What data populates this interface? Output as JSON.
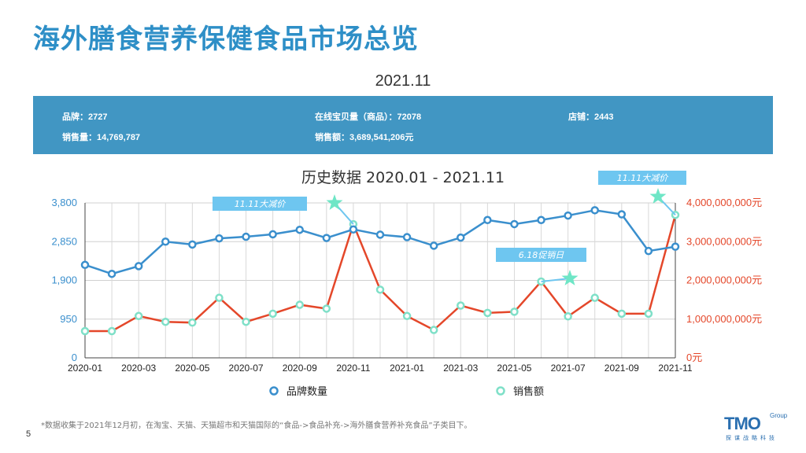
{
  "header": {
    "title": "海外膳食营养保健食品市场总览",
    "period": "2021.11"
  },
  "stats": {
    "brand_label": "品牌：",
    "brand_value": "2727",
    "sales_vol_label": "销售量：",
    "sales_vol_value": "14,769,787",
    "items_label": "在线宝贝量（商品）：",
    "items_value": "72078",
    "revenue_label": "销售额：",
    "revenue_value": "3,689,541,206元",
    "shops_label": "店铺：",
    "shops_value": "2443"
  },
  "colors": {
    "brand_series": "#3a8fcd",
    "sales_series": "#e4472a",
    "marker_fill": "#ffffff",
    "sales_marker": "#7fe0c8",
    "annotation_bg": "#6ec6f0",
    "star": "#6ee6c6",
    "stats_bg": "#4196c3",
    "title": "#2e8fc7"
  },
  "chart_data": {
    "type": "line",
    "title": "历史数据 2020.01 - 2021.11",
    "x": [
      "2020-01",
      "2020-02",
      "2020-03",
      "2020-04",
      "2020-05",
      "2020-06",
      "2020-07",
      "2020-08",
      "2020-09",
      "2020-10",
      "2020-11",
      "2020-12",
      "2021-01",
      "2021-02",
      "2021-03",
      "2021-04",
      "2021-05",
      "2021-06",
      "2021-07",
      "2021-08",
      "2021-09",
      "2021-10",
      "2021-11"
    ],
    "x_tick_labels": [
      "2020-01",
      "2020-03",
      "2020-05",
      "2020-07",
      "2020-09",
      "2020-11",
      "2021-01",
      "2021-03",
      "2021-05",
      "2021-07",
      "2021-09",
      "2021-11"
    ],
    "y_left": {
      "ticks": [
        "0",
        "950",
        "1,900",
        "2,850",
        "3,800"
      ],
      "ylim": [
        0,
        3800
      ]
    },
    "y_right": {
      "ticks": [
        "0元",
        "1,000,000,000元",
        "2,000,000,000元",
        "3,000,000,000元",
        "4,000,000,000元"
      ],
      "ylim": [
        0,
        4000000000
      ]
    },
    "series": [
      {
        "name": "品牌数量",
        "axis": "left",
        "values": [
          2280,
          2060,
          2250,
          2850,
          2780,
          2930,
          2970,
          3030,
          3140,
          2940,
          3150,
          3020,
          2960,
          2750,
          2950,
          3380,
          3280,
          3380,
          3490,
          3620,
          3520,
          2620,
          2727
        ]
      },
      {
        "name": "销售额",
        "axis": "right",
        "values": [
          690000000,
          690000000,
          1080000000,
          930000000,
          910000000,
          1550000000,
          930000000,
          1140000000,
          1370000000,
          1270000000,
          3450000000,
          1760000000,
          1080000000,
          720000000,
          1350000000,
          1160000000,
          1190000000,
          1970000000,
          1070000000,
          1550000000,
          1140000000,
          1140000000,
          3689541206
        ]
      }
    ],
    "annotations": [
      {
        "text": "11.11大减价",
        "index": 10
      },
      {
        "text": "6.18促销日",
        "index": 17
      },
      {
        "text": "11.11大减价",
        "index": 22
      }
    ],
    "legend_position": "bottom"
  },
  "footnote": "*数据收集于2021年12月初，在淘宝、天猫、天猫超市和天猫国际的“食品->食品补充->海外膳食营养补充食品”子类目下。",
  "page_number": "5",
  "logo": {
    "main": "TMO",
    "group": "Group",
    "sub": "探谋战略科技"
  }
}
